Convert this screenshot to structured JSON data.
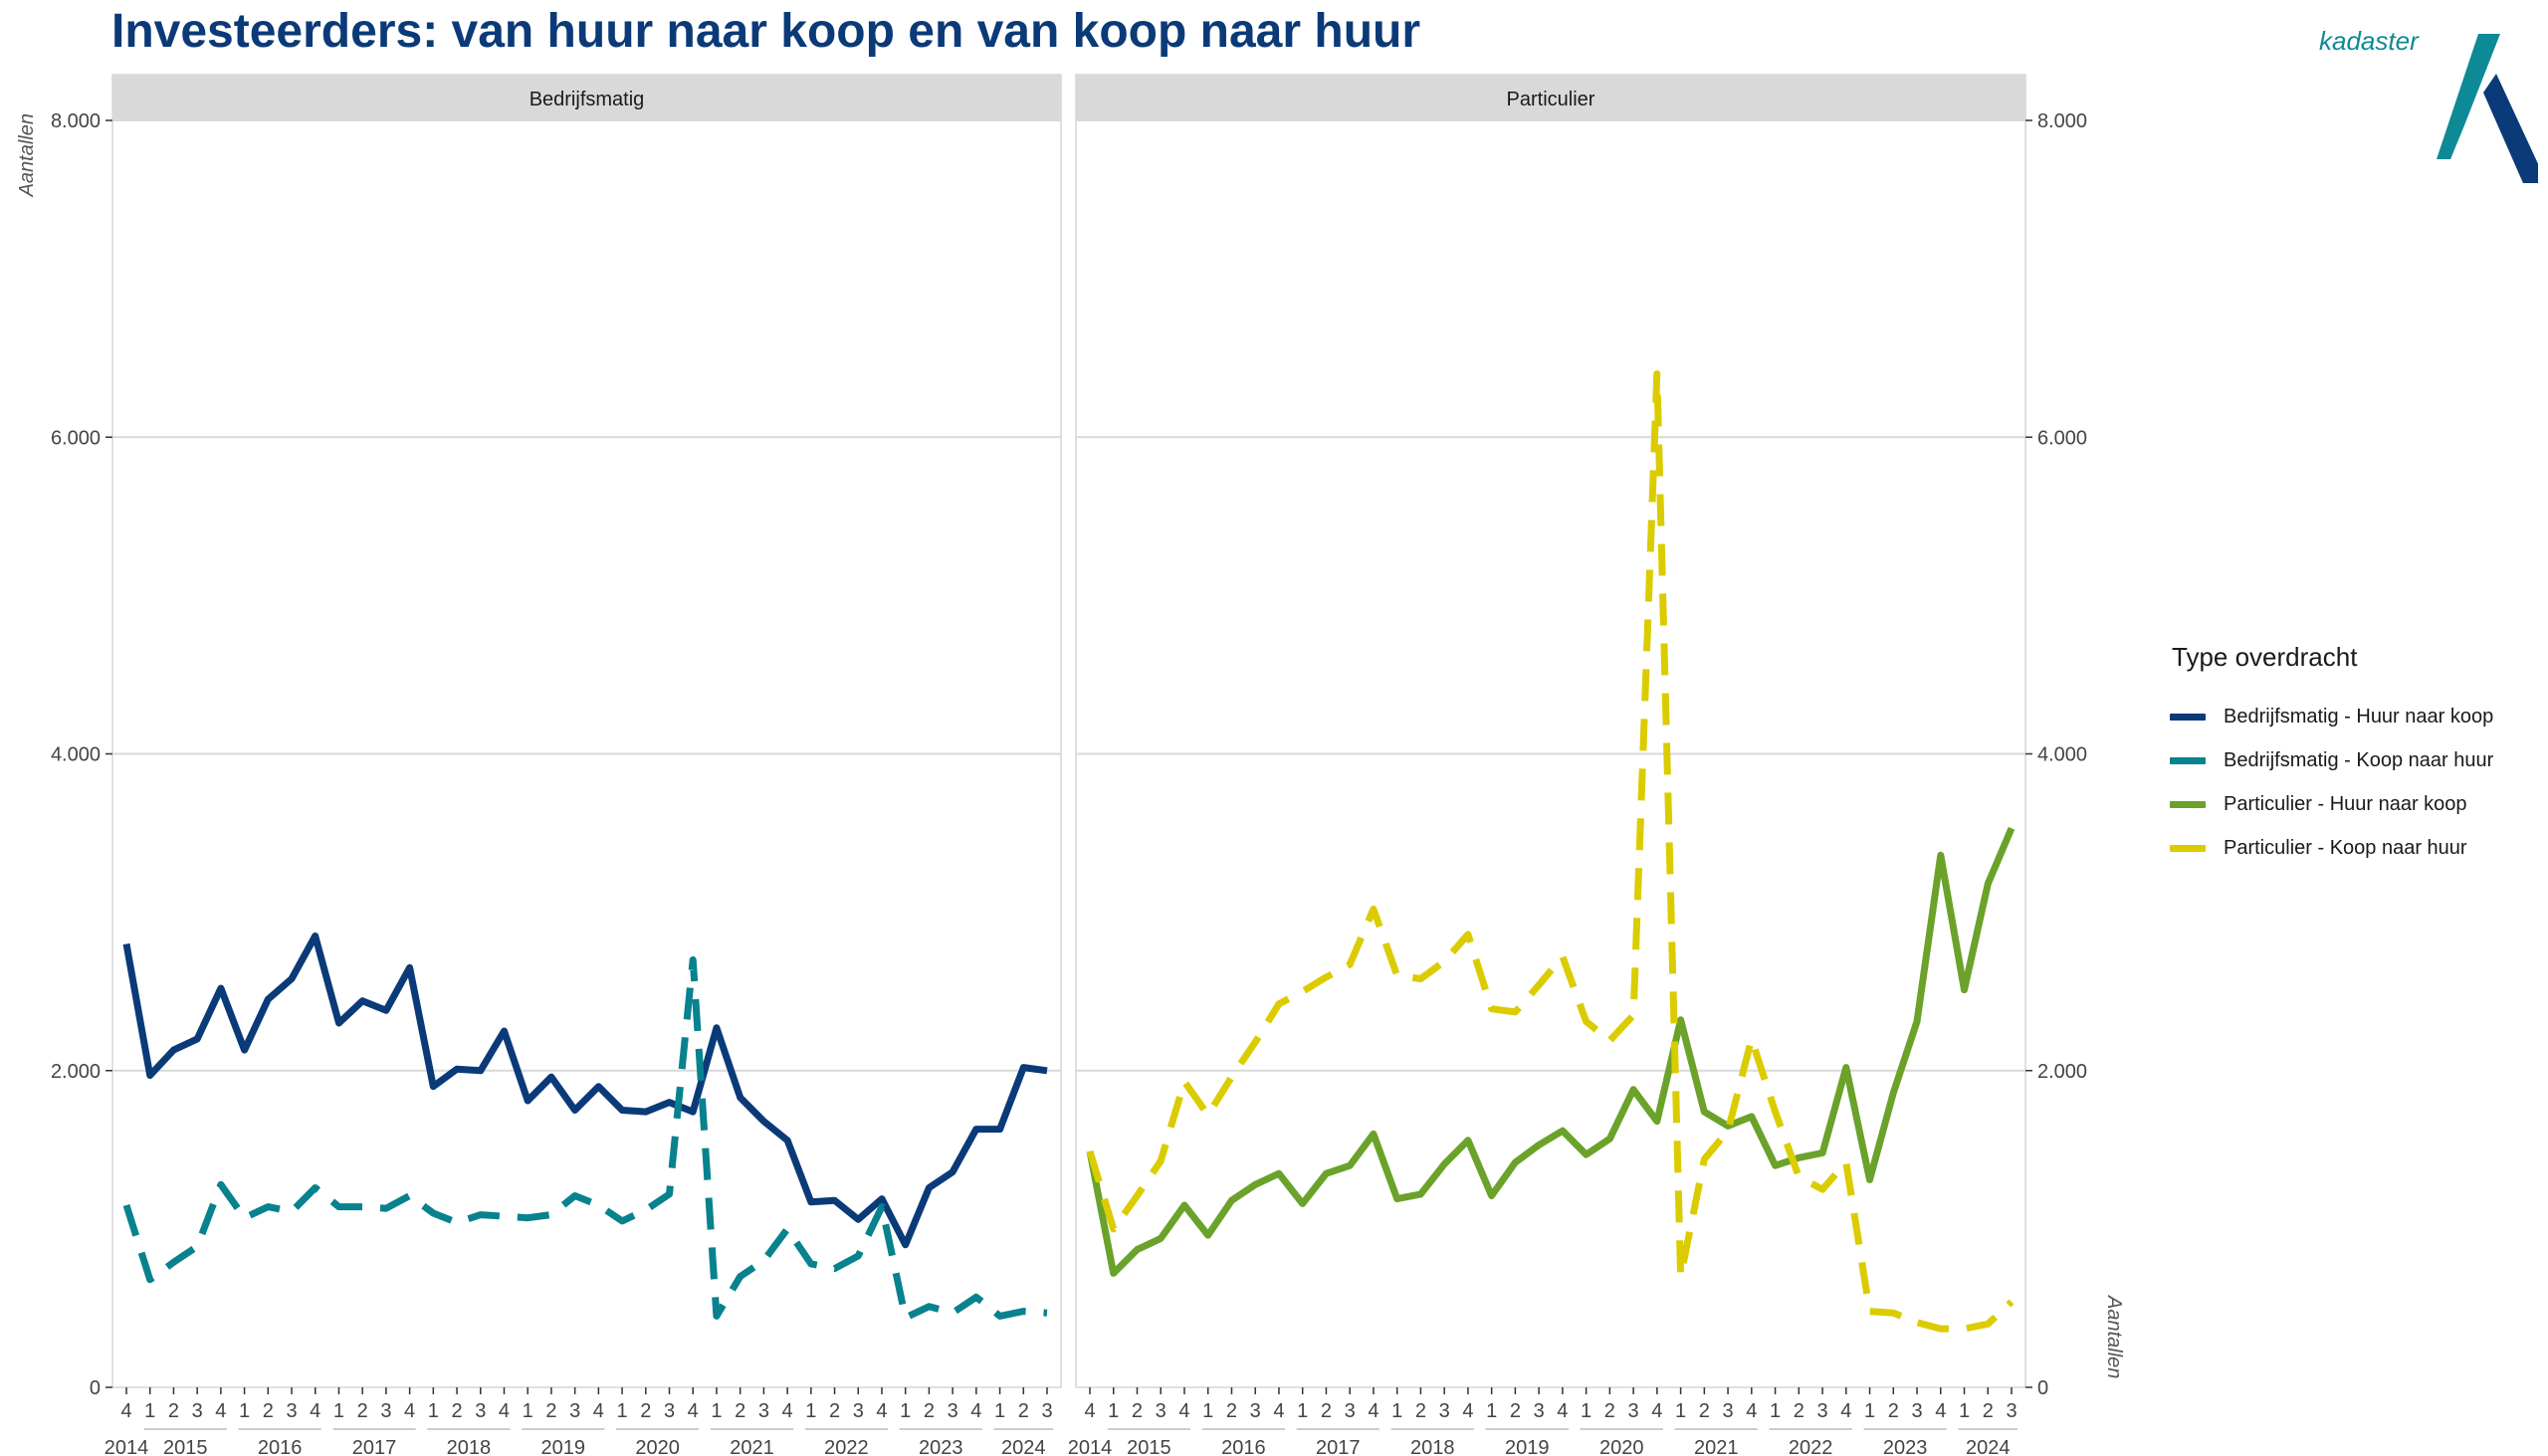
{
  "title": "Investeerders: van huur naar koop en van koop naar huur",
  "logo_text": "kadaster",
  "colors": {
    "bedrijf_huur_koop": "#0b3a78",
    "bedrijf_koop_huur": "#07828e",
    "part_huur_koop": "#6aa22a",
    "part_koop_huur": "#dbcc00",
    "logo_teal": "#0e8a96",
    "logo_navy": "#0b3a78",
    "title": "#0b3a78",
    "strip_bg": "#d9d9d9",
    "grid": "#d9d9d9"
  },
  "legend": {
    "title": "Type overdracht",
    "items": [
      {
        "label": "Bedrijfsmatig - Huur naar koop",
        "color": "#0b3a78",
        "dashed": false
      },
      {
        "label": "Bedrijfsmatig - Koop naar huur",
        "color": "#07828e",
        "dashed": true
      },
      {
        "label": "Particulier - Huur naar koop",
        "color": "#6aa22a",
        "dashed": false
      },
      {
        "label": "Particulier - Koop naar huur",
        "color": "#dbcc00",
        "dashed": true
      }
    ]
  },
  "chart_data": [
    {
      "type": "line",
      "panel": "Bedrijfsmatig",
      "ylabel": "Aantallen",
      "ylim": [
        0,
        8000
      ],
      "yticks": [
        0,
        2000,
        4000,
        6000,
        8000
      ],
      "ytick_labels": [
        "0",
        "2.000",
        "4.000",
        "6.000",
        "8.000"
      ],
      "x_quarter_labels": [
        "4",
        "1",
        "2",
        "3",
        "4",
        "1",
        "2",
        "3",
        "4",
        "1",
        "2",
        "3",
        "4",
        "1",
        "2",
        "3",
        "4",
        "1",
        "2",
        "3",
        "4",
        "1",
        "2",
        "3",
        "4",
        "1",
        "2",
        "3",
        "4",
        "1",
        "2",
        "3",
        "4",
        "1",
        "2",
        "3",
        "4",
        "1",
        "2",
        "3"
      ],
      "x_year_labels": [
        "2014",
        "2015",
        "2016",
        "2017",
        "2018",
        "2019",
        "2020",
        "2021",
        "2022",
        "2023",
        "2024"
      ],
      "grid": true,
      "series": [
        {
          "name": "Bedrijfsmatig - Huur naar koop",
          "color": "#0b3a78",
          "dashed": false,
          "values": [
            2800,
            1970,
            2130,
            2200,
            2520,
            2130,
            2450,
            2580,
            2850,
            2300,
            2440,
            2380,
            2650,
            1900,
            2010,
            2000,
            2250,
            1810,
            1960,
            1750,
            1900,
            1750,
            1740,
            1800,
            1740,
            2270,
            1830,
            1680,
            1560,
            1170,
            1180,
            1060,
            1190,
            900,
            1260,
            1360,
            1630,
            1630,
            2020,
            2000
          ]
        },
        {
          "name": "Bedrijfsmatig - Koop naar huur",
          "color": "#07828e",
          "dashed": true,
          "values": [
            1150,
            680,
            790,
            890,
            1280,
            1070,
            1140,
            1110,
            1260,
            1140,
            1140,
            1130,
            1210,
            1100,
            1040,
            1090,
            1080,
            1070,
            1090,
            1210,
            1150,
            1050,
            1120,
            1220,
            2700,
            450,
            700,
            800,
            1000,
            780,
            750,
            830,
            1140,
            440,
            510,
            470,
            570,
            450,
            480,
            470
          ]
        },
        {
          "name": "Particulier - Huur naar koop",
          "color": "#6aa22a",
          "dashed": false,
          "values": [
            1490,
            720,
            870,
            940,
            1150,
            960,
            1180,
            1280,
            1350,
            1160,
            1350,
            1400,
            1600,
            1190,
            1220,
            1410,
            1560,
            1210,
            1420,
            1530,
            1620,
            1470,
            1570,
            1880,
            1680,
            2320,
            1740,
            1650,
            1710,
            1400,
            1450,
            1480,
            2020,
            1310,
            1860,
            2310,
            3360,
            2510,
            3180,
            3530
          ]
        },
        {
          "name": "Particulier - Koop naar huur",
          "color": "#dbcc00",
          "dashed": true,
          "values": [
            1490,
            1000,
            1210,
            1430,
            1930,
            1720,
            1960,
            2180,
            2420,
            2500,
            2590,
            2670,
            3020,
            2600,
            2580,
            2690,
            2860,
            2390,
            2370,
            2540,
            2720,
            2310,
            2190,
            2350,
            6400,
            700,
            1440,
            1620,
            2200,
            1740,
            1330,
            1250,
            1420,
            480,
            470,
            410,
            370,
            370,
            400,
            540
          ]
        }
      ]
    }
  ],
  "panels": [
    {
      "strip": "Bedrijfsmatig",
      "series_idx": [
        0,
        1
      ]
    },
    {
      "strip": "Particulier",
      "series_idx": [
        2,
        3
      ]
    }
  ]
}
